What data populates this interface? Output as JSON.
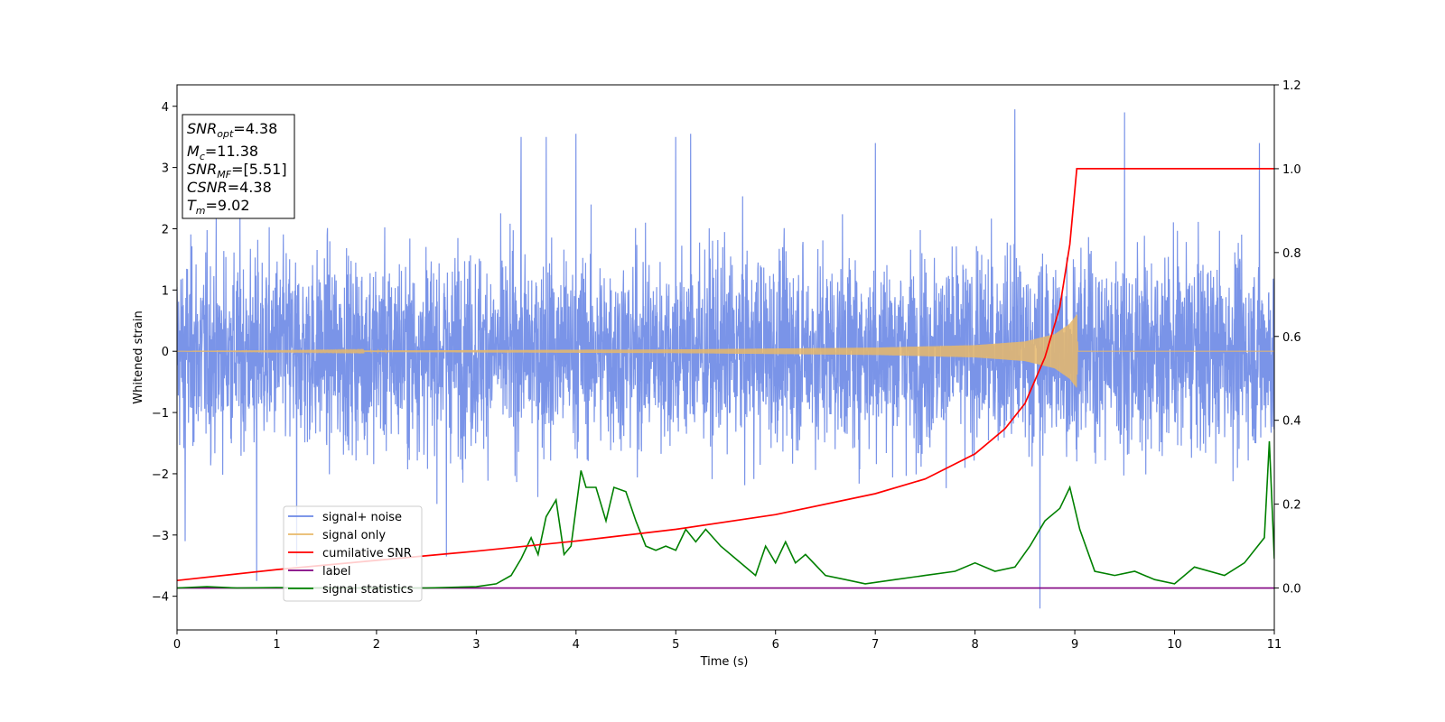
{
  "chart_data": {
    "type": "line",
    "xlabel": "Time (s)",
    "ylabel": "Whitened strain",
    "xlim": [
      0,
      11
    ],
    "ylim_left": [
      -4.55,
      4.35
    ],
    "ylim_right": [
      -0.1,
      1.2
    ],
    "x_ticks": [
      "0",
      "1",
      "2",
      "3",
      "4",
      "5",
      "6",
      "7",
      "8",
      "9",
      "10",
      "11"
    ],
    "y_left_ticks": [
      "4",
      "3",
      "2",
      "1",
      "0",
      "−1",
      "−2",
      "−3",
      "−4"
    ],
    "y_right_ticks": [
      "1.2",
      "1.0",
      "0.8",
      "0.6",
      "0.4",
      "0.2",
      "0.0"
    ],
    "grid": false,
    "legend_position": "lower left",
    "series": [
      {
        "name": "signal+ noise",
        "axis": "left",
        "color": "#6b88e6",
        "description_values": {
          "baseline_amplitude_range": [
            -2.3,
            2.3
          ],
          "spikes": [
            [
              0.08,
              -3.1
            ],
            [
              0.8,
              -3.75
            ],
            [
              1.2,
              -3.5
            ],
            [
              2.7,
              -3.35
            ],
            [
              3.45,
              3.5
            ],
            [
              3.7,
              3.5
            ],
            [
              4.0,
              3.55
            ],
            [
              5.0,
              3.5
            ],
            [
              5.15,
              3.55
            ],
            [
              7.0,
              3.4
            ],
            [
              8.4,
              3.95
            ],
            [
              8.65,
              -4.2
            ],
            [
              9.5,
              3.9
            ],
            [
              10.85,
              3.4
            ]
          ]
        }
      },
      {
        "name": "signal only",
        "axis": "left",
        "color": "#e8b96a",
        "values": [
          [
            0,
            0.0
          ],
          [
            5.0,
            0.03
          ],
          [
            7.0,
            0.06
          ],
          [
            8.0,
            0.1
          ],
          [
            8.5,
            0.16
          ],
          [
            8.8,
            0.28
          ],
          [
            8.95,
            0.45
          ],
          [
            9.02,
            0.6
          ],
          [
            9.03,
            0.0
          ],
          [
            11,
            0.0
          ]
        ]
      },
      {
        "name": "cumilative SNR",
        "axis": "right",
        "color": "#ff0000",
        "x": [
          0,
          1,
          2,
          3,
          4,
          5,
          6,
          7,
          7.5,
          8,
          8.3,
          8.5,
          8.7,
          8.85,
          8.95,
          9.02,
          9.03,
          11
        ],
        "y": [
          0.018,
          0.044,
          0.066,
          0.088,
          0.112,
          0.14,
          0.175,
          0.225,
          0.26,
          0.32,
          0.38,
          0.44,
          0.55,
          0.67,
          0.82,
          1.0,
          1.0,
          1.0
        ]
      },
      {
        "name": "label",
        "axis": "right",
        "color": "#800080",
        "x": [
          0,
          11
        ],
        "y": [
          0.0,
          0.0
        ]
      },
      {
        "name": "signal statistics",
        "axis": "right",
        "color": "#008000",
        "x": [
          0,
          0.3,
          0.6,
          1.0,
          1.5,
          2.0,
          2.5,
          3.0,
          3.2,
          3.35,
          3.45,
          3.55,
          3.62,
          3.7,
          3.8,
          3.88,
          3.95,
          4.05,
          4.1,
          4.2,
          4.3,
          4.38,
          4.5,
          4.6,
          4.7,
          4.8,
          4.9,
          5.0,
          5.1,
          5.2,
          5.3,
          5.45,
          5.6,
          5.8,
          5.9,
          6.0,
          6.1,
          6.2,
          6.3,
          6.5,
          6.7,
          6.9,
          7.2,
          7.5,
          7.8,
          8.0,
          8.2,
          8.4,
          8.55,
          8.7,
          8.85,
          8.95,
          9.05,
          9.2,
          9.4,
          9.6,
          9.8,
          10.0,
          10.2,
          10.5,
          10.7,
          10.9,
          10.95,
          11.0
        ],
        "y": [
          0.0,
          0.003,
          0.0,
          0.001,
          0.0,
          0.0,
          0.0,
          0.003,
          0.01,
          0.03,
          0.07,
          0.12,
          0.08,
          0.17,
          0.21,
          0.08,
          0.1,
          0.28,
          0.24,
          0.24,
          0.16,
          0.24,
          0.23,
          0.16,
          0.1,
          0.09,
          0.1,
          0.09,
          0.14,
          0.11,
          0.14,
          0.1,
          0.07,
          0.03,
          0.1,
          0.06,
          0.11,
          0.06,
          0.08,
          0.03,
          0.02,
          0.01,
          0.02,
          0.03,
          0.04,
          0.06,
          0.04,
          0.05,
          0.1,
          0.16,
          0.19,
          0.24,
          0.14,
          0.04,
          0.03,
          0.04,
          0.02,
          0.01,
          0.05,
          0.03,
          0.06,
          0.12,
          0.35,
          0.07
        ]
      }
    ],
    "annotations": {
      "stats_box": [
        {
          "name": "SNR",
          "sub": "opt",
          "value": "=4.38"
        },
        {
          "name": "M",
          "sub": "c",
          "value": "=11.38"
        },
        {
          "name": "SNR",
          "sub": "MF",
          "value": "=[5.51]"
        },
        {
          "name": "CSNR",
          "sub": "",
          "value": "=4.38"
        },
        {
          "name": "T",
          "sub": "m",
          "value": "=9.02"
        }
      ]
    }
  }
}
